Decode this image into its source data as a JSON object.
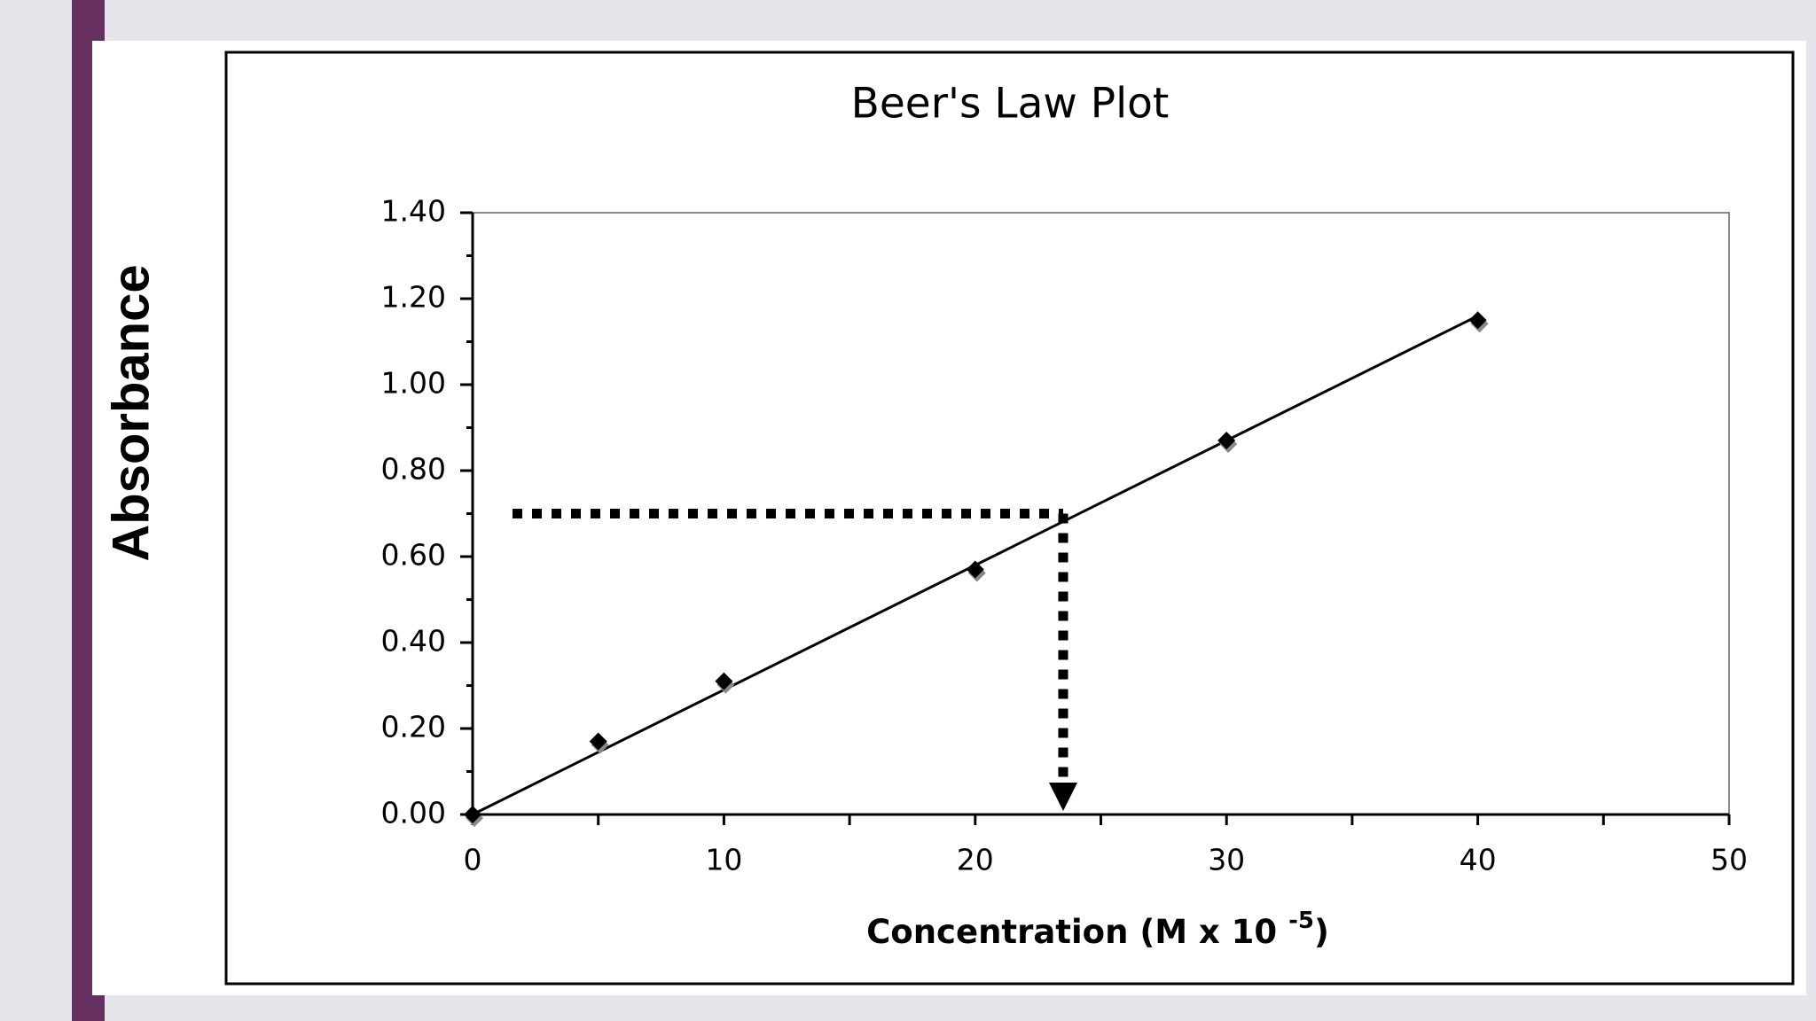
{
  "chart_data": {
    "type": "scatter",
    "title": "Beer's Law Plot",
    "x_label": {
      "text": "Concentration (M x 10 ",
      "sup": "-5",
      "end": ")"
    },
    "y_label": "Absorbance",
    "x": [
      0,
      5,
      10,
      20,
      30,
      40
    ],
    "values": [
      0,
      0.17,
      0.31,
      0.57,
      0.87,
      1.15
    ],
    "color": "#000000",
    "trendline": {
      "x": [
        0,
        40
      ],
      "y": [
        0,
        1.16
      ]
    },
    "reading": {
      "x": 23.5,
      "y": 0.7
    },
    "xlim": [
      0,
      50
    ],
    "xticks": [
      0,
      10,
      20,
      30,
      40,
      50
    ],
    "xminorticks": [
      5,
      15,
      25,
      35,
      45
    ],
    "ylim": [
      0,
      1.4
    ],
    "yticks": [
      {
        "value": 0,
        "label": "0.00"
      },
      {
        "value": 0.2,
        "label": "0.20"
      },
      {
        "value": 0.4,
        "label": "0.40"
      },
      {
        "value": 0.6,
        "label": "0.60"
      },
      {
        "value": 0.8,
        "label": "0.80"
      },
      {
        "value": 1.0,
        "label": "1.00"
      },
      {
        "value": 1.2,
        "label": "1.20"
      },
      {
        "value": 1.4,
        "label": "1.40"
      }
    ],
    "yminorticks": [
      0.1,
      0.3,
      0.5,
      0.7,
      0.9,
      1.1,
      1.3
    ]
  }
}
